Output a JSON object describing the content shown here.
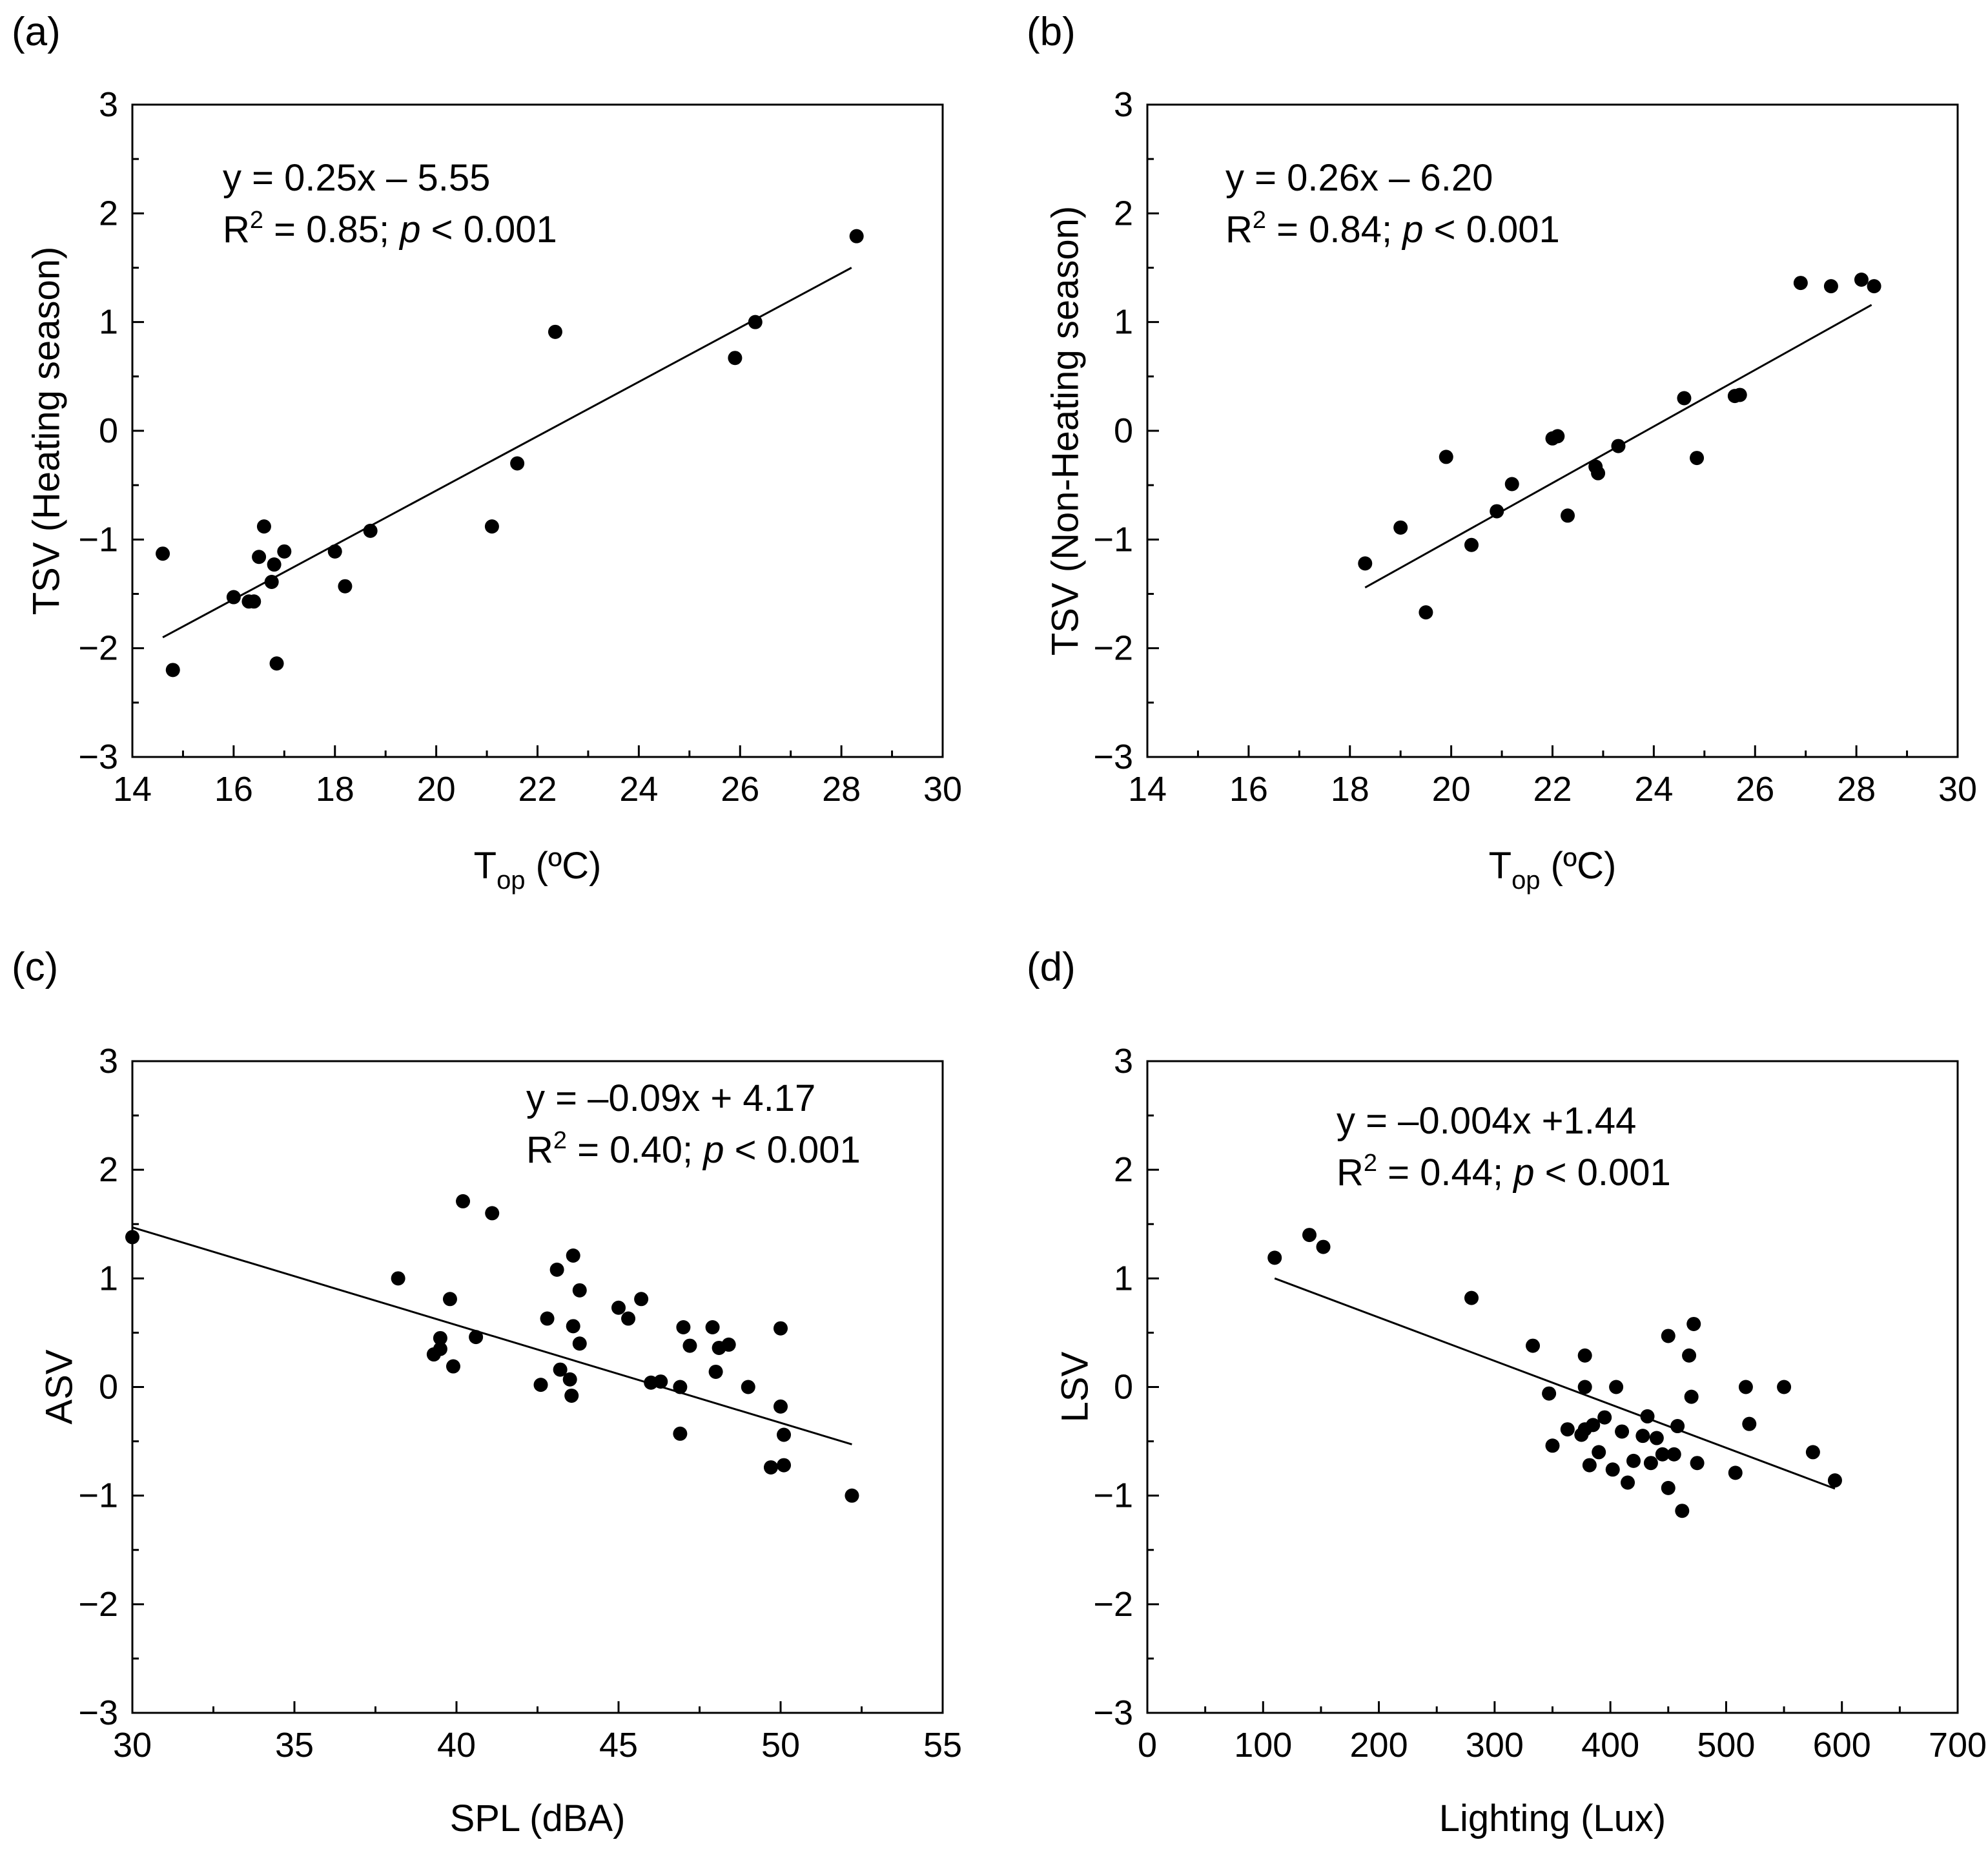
{
  "chart_data": [
    {
      "panel": "(a)",
      "type": "scatter",
      "xlabel": "T",
      "xlabel_sub": "op",
      "xlabel_unit": " (ºC)",
      "ylabel": "TSV (Heating season)",
      "xlim": [
        14,
        30
      ],
      "ylim": [
        -3,
        3
      ],
      "xticks": [
        14,
        16,
        18,
        20,
        22,
        24,
        26,
        28,
        30
      ],
      "yticks": [
        -3,
        -2,
        -1,
        0,
        1,
        2,
        3
      ],
      "xtick_labels": [
        "14",
        "16",
        "18",
        "20",
        "22",
        "24",
        "26",
        "28",
        "30"
      ],
      "ytick_labels": [
        "−3",
        "−2",
        "−1",
        "0",
        "1",
        "2",
        "3"
      ],
      "equation": "y = 0.25x – 5.55",
      "r2_prefix": "R",
      "r2_sup": "2",
      "r2_mid": " = 0.85; ",
      "p_italic": "p",
      "p_rest": " < 0.001",
      "legend_placement": "top-left",
      "fit": {
        "slope": 0.25,
        "intercept": -5.55,
        "x_range": [
          14.6,
          28.2
        ]
      },
      "points": [
        [
          14.6,
          -1.13
        ],
        [
          14.8,
          -2.2
        ],
        [
          16.0,
          -1.53
        ],
        [
          16.3,
          -1.57
        ],
        [
          16.4,
          -1.57
        ],
        [
          16.5,
          -1.16
        ],
        [
          16.6,
          -0.88
        ],
        [
          16.75,
          -1.39
        ],
        [
          16.8,
          -1.23
        ],
        [
          16.85,
          -2.14
        ],
        [
          17.0,
          -1.11
        ],
        [
          18.0,
          -1.11
        ],
        [
          18.2,
          -1.43
        ],
        [
          18.7,
          -0.92
        ],
        [
          21.1,
          -0.88
        ],
        [
          21.6,
          -0.3
        ],
        [
          22.35,
          0.91
        ],
        [
          25.9,
          0.67
        ],
        [
          26.3,
          1.0
        ],
        [
          28.3,
          1.79
        ]
      ]
    },
    {
      "panel": "(b)",
      "type": "scatter",
      "xlabel": "T",
      "xlabel_sub": "op",
      "xlabel_unit": " (ºC)",
      "ylabel": "TSV (Non-Heating season)",
      "xlim": [
        14,
        30
      ],
      "ylim": [
        -3,
        3
      ],
      "xticks": [
        14,
        16,
        18,
        20,
        22,
        24,
        26,
        28,
        30
      ],
      "yticks": [
        -3,
        -2,
        -1,
        0,
        1,
        2,
        3
      ],
      "xtick_labels": [
        "14",
        "16",
        "18",
        "20",
        "22",
        "24",
        "26",
        "28",
        "30"
      ],
      "ytick_labels": [
        "−3",
        "−2",
        "−1",
        "0",
        "1",
        "2",
        "3"
      ],
      "equation": "y = 0.26x – 6.20",
      "r2_prefix": "R",
      "r2_sup": "2",
      "r2_mid": " = 0.84; ",
      "p_italic": "p",
      "p_rest": " < 0.001",
      "legend_placement": "top-left",
      "fit": {
        "slope": 0.26,
        "intercept": -6.2,
        "x_range": [
          18.3,
          28.3
        ]
      },
      "points": [
        [
          18.3,
          -1.22
        ],
        [
          19.0,
          -0.89
        ],
        [
          19.5,
          -1.67
        ],
        [
          19.9,
          -0.24
        ],
        [
          20.4,
          -1.05
        ],
        [
          20.9,
          -0.74
        ],
        [
          21.2,
          -0.49
        ],
        [
          22.0,
          -0.07
        ],
        [
          22.1,
          -0.05
        ],
        [
          22.3,
          -0.78
        ],
        [
          22.85,
          -0.33
        ],
        [
          22.9,
          -0.39
        ],
        [
          23.3,
          -0.14
        ],
        [
          24.6,
          0.3
        ],
        [
          24.85,
          -0.25
        ],
        [
          25.6,
          0.32
        ],
        [
          25.7,
          0.33
        ],
        [
          26.9,
          1.36
        ],
        [
          27.5,
          1.33
        ],
        [
          28.1,
          1.39
        ],
        [
          28.35,
          1.33
        ]
      ]
    },
    {
      "panel": "(c)",
      "type": "scatter",
      "xlabel": "SPL (dBA)",
      "xlabel_sub": "",
      "xlabel_unit": "",
      "ylabel": "ASV",
      "xlim": [
        30,
        55
      ],
      "ylim": [
        -3,
        3
      ],
      "xticks": [
        30,
        35,
        40,
        45,
        50,
        55
      ],
      "yticks": [
        -3,
        -2,
        -1,
        0,
        1,
        2,
        3
      ],
      "xtick_labels": [
        "30",
        "35",
        "40",
        "45",
        "50",
        "55"
      ],
      "ytick_labels": [
        "−3",
        "−2",
        "−1",
        "0",
        "1",
        "2",
        "3"
      ],
      "equation": "y = –0.09x + 4.17",
      "r2_prefix": "R",
      "r2_sup": "2",
      "r2_mid": " = 0.40; ",
      "p_italic": "p",
      "p_rest": " < 0.001",
      "legend_placement": "top-right",
      "fit": {
        "slope": -0.09,
        "intercept": 4.17,
        "x_range": [
          30,
          52.2
        ]
      },
      "points": [
        [
          30.0,
          1.38
        ],
        [
          38.2,
          1.0
        ],
        [
          39.3,
          0.3
        ],
        [
          39.5,
          0.45
        ],
        [
          39.5,
          0.35
        ],
        [
          39.8,
          0.81
        ],
        [
          39.9,
          0.19
        ],
        [
          40.2,
          1.71
        ],
        [
          40.6,
          0.46
        ],
        [
          41.1,
          1.6
        ],
        [
          42.6,
          0.02
        ],
        [
          42.8,
          0.63
        ],
        [
          43.1,
          1.08
        ],
        [
          43.2,
          0.16
        ],
        [
          43.5,
          0.07
        ],
        [
          43.55,
          -0.08
        ],
        [
          43.6,
          0.56
        ],
        [
          43.6,
          1.21
        ],
        [
          43.8,
          0.89
        ],
        [
          43.8,
          0.4
        ],
        [
          45.0,
          0.73
        ],
        [
          45.3,
          0.63
        ],
        [
          45.7,
          0.81
        ],
        [
          46.0,
          0.04
        ],
        [
          46.3,
          0.05
        ],
        [
          46.9,
          0.0
        ],
        [
          46.9,
          -0.43
        ],
        [
          47.0,
          0.55
        ],
        [
          47.2,
          0.38
        ],
        [
          47.9,
          0.55
        ],
        [
          48.0,
          0.14
        ],
        [
          48.1,
          0.36
        ],
        [
          48.4,
          0.39
        ],
        [
          49.0,
          0.0
        ],
        [
          49.7,
          -0.74
        ],
        [
          50.0,
          0.54
        ],
        [
          50.0,
          -0.18
        ],
        [
          50.1,
          -0.44
        ],
        [
          50.1,
          -0.72
        ],
        [
          52.2,
          -1.0
        ]
      ]
    },
    {
      "panel": "(d)",
      "type": "scatter",
      "xlabel": "Lighting (Lux)",
      "xlabel_sub": "",
      "xlabel_unit": "",
      "ylabel": "LSV",
      "xlim": [
        0,
        700
      ],
      "ylim": [
        -3,
        3
      ],
      "xticks": [
        0,
        100,
        200,
        300,
        400,
        500,
        600,
        700
      ],
      "yticks": [
        -3,
        -2,
        -1,
        0,
        1,
        2,
        3
      ],
      "xtick_labels": [
        "0",
        "100",
        "200",
        "300",
        "400",
        "500",
        "600",
        "700"
      ],
      "ytick_labels": [
        "−3",
        "−2",
        "−1",
        "0",
        "1",
        "2",
        "3"
      ],
      "equation": "y = –0.004x +1.44",
      "r2_prefix": "R",
      "r2_sup": "2",
      "r2_mid": " = 0.44; ",
      "p_italic": "p",
      "p_rest": " < 0.001",
      "legend_placement": "top-center",
      "fit": {
        "slope": -0.004,
        "intercept": 1.44,
        "x_range": [
          110,
          594
        ]
      },
      "points": [
        [
          110,
          1.19
        ],
        [
          140,
          1.4
        ],
        [
          152,
          1.29
        ],
        [
          280,
          0.82
        ],
        [
          333,
          0.38
        ],
        [
          347,
          -0.06
        ],
        [
          350,
          -0.54
        ],
        [
          363,
          -0.39
        ],
        [
          375,
          -0.44
        ],
        [
          378,
          -0.39
        ],
        [
          378,
          0.29
        ],
        [
          378,
          0.0
        ],
        [
          382,
          -0.72
        ],
        [
          385,
          -0.35
        ],
        [
          390,
          -0.6
        ],
        [
          395,
          -0.28
        ],
        [
          402,
          -0.76
        ],
        [
          405,
          0.0
        ],
        [
          410,
          -0.41
        ],
        [
          415,
          -0.88
        ],
        [
          420,
          -0.68
        ],
        [
          428,
          -0.45
        ],
        [
          432,
          -0.27
        ],
        [
          435,
          -0.7
        ],
        [
          440,
          -0.47
        ],
        [
          445,
          -0.62
        ],
        [
          450,
          0.47
        ],
        [
          450,
          -0.93
        ],
        [
          455,
          -0.62
        ],
        [
          458,
          -0.36
        ],
        [
          462,
          -1.14
        ],
        [
          468,
          0.29
        ],
        [
          470,
          -0.09
        ],
        [
          472,
          0.58
        ],
        [
          475,
          -0.7
        ],
        [
          508,
          -0.79
        ],
        [
          517,
          0.0
        ],
        [
          520,
          -0.34
        ],
        [
          550,
          0.0
        ],
        [
          575,
          -0.6
        ],
        [
          594,
          -0.86
        ]
      ]
    }
  ]
}
